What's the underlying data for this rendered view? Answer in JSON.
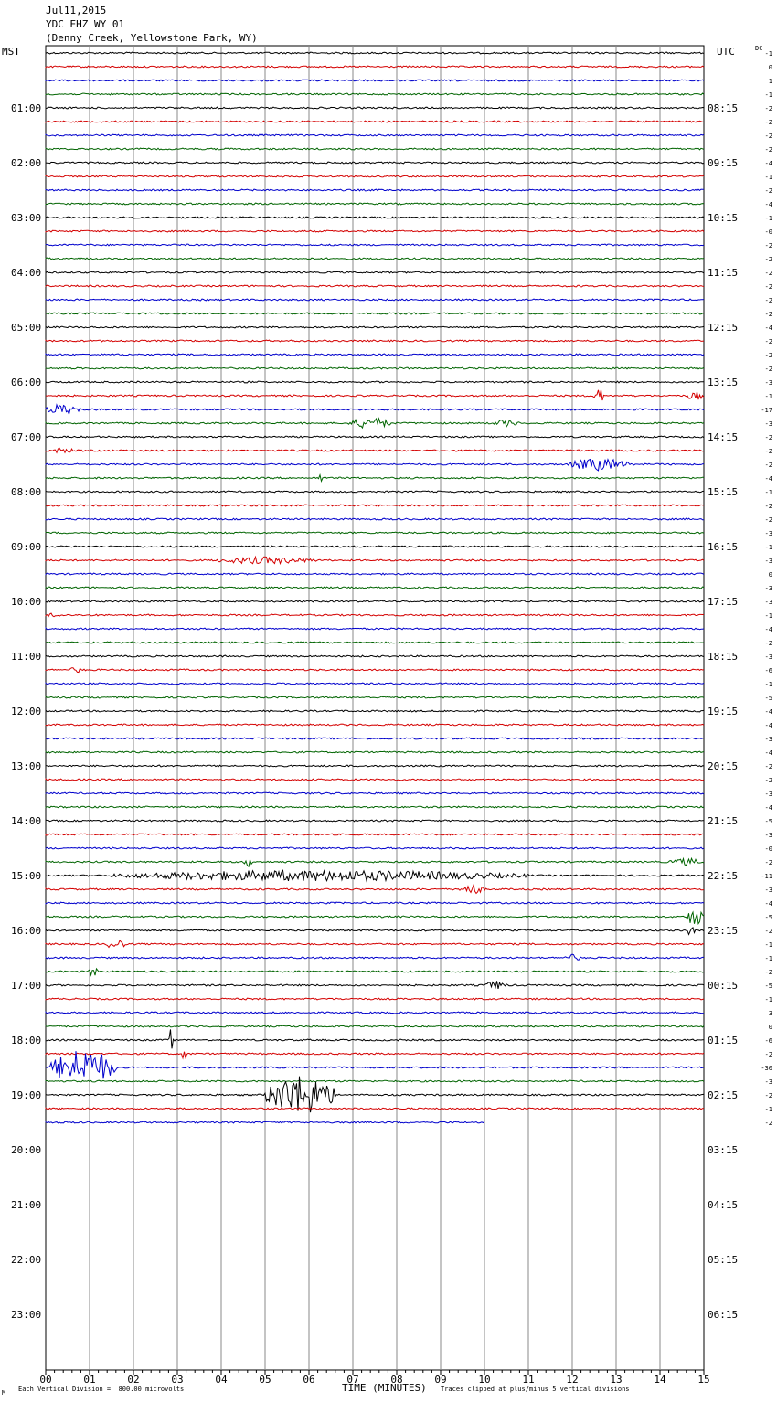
{
  "header": {
    "date": "Jul11,2015",
    "station": "YDC EHZ WY 01",
    "location": "(Denny Creek, Yellowstone Park, WY)",
    "left_zone": "MST",
    "right_zone": "UTC",
    "dc_label": "DC"
  },
  "footer": {
    "scale_note": "Each Vertical Division =  800.00 microvolts",
    "xlabel": "TIME (MINUTES)",
    "clip_note": "Traces clipped at plus/minus 5 vertical divisions",
    "corner_mark": "M"
  },
  "chart_data": {
    "type": "line",
    "title": "YDC EHZ WY 01",
    "xlabel": "TIME (MINUTES)",
    "xlim": [
      0,
      15
    ],
    "x_ticks": [
      "00",
      "01",
      "02",
      "03",
      "04",
      "05",
      "06",
      "07",
      "08",
      "09",
      "10",
      "11",
      "12",
      "13",
      "14",
      "15"
    ],
    "left_hour_labels": [
      "01:00",
      "02:00",
      "03:00",
      "04:00",
      "05:00",
      "06:00",
      "07:00",
      "08:00",
      "09:00",
      "10:00",
      "11:00",
      "12:00",
      "13:00",
      "14:00",
      "15:00",
      "16:00",
      "17:00",
      "18:00",
      "19:00",
      "20:00",
      "21:00",
      "22:00",
      "23:00"
    ],
    "right_hour_labels": [
      "08:15",
      "09:15",
      "10:15",
      "11:15",
      "12:15",
      "13:15",
      "14:15",
      "15:15",
      "16:15",
      "17:15",
      "18:15",
      "19:15",
      "20:15",
      "21:15",
      "22:15",
      "23:15",
      "00:15",
      "01:15",
      "02:15",
      "03:15",
      "04:15",
      "05:15",
      "06:15"
    ],
    "trace_colors": [
      "#000000",
      "#d40000",
      "#0000cc",
      "#006400"
    ],
    "total_traces": 79,
    "last_trace_end_minute": 10,
    "dc_offsets": [
      "-1",
      "0",
      "1",
      "-1",
      "-2",
      "-2",
      "-2",
      "-2",
      "-4",
      "-1",
      "-2",
      "-4",
      "-1",
      "-0",
      "-2",
      "-2",
      "-2",
      "-2",
      "-2",
      "-2",
      "-4",
      "-2",
      "-2",
      "-2",
      "-3",
      "-1",
      "-17",
      "-3",
      "-2",
      "-2",
      "-2",
      "-4",
      "-1",
      "-2",
      "-2",
      "-3",
      "-1",
      "-3",
      "0",
      "-3",
      "-3",
      "-1",
      "-4",
      "-2",
      "-3",
      "-6",
      "-1",
      "-5",
      "-4",
      "-4",
      "-3",
      "-4",
      "-2",
      "-2",
      "-3",
      "-4",
      "-5",
      "-3",
      "-0",
      "-2",
      "-11",
      "-3",
      "-4",
      "-5",
      "-2",
      "-1",
      "-1",
      "-2",
      "-5",
      "-1",
      "3",
      "0",
      "-6",
      "-2",
      "-30",
      "-3",
      "-2",
      "-1",
      "-2"
    ],
    "events": [
      {
        "trace": 26,
        "start_min": 0.0,
        "end_min": 0.8,
        "amp": 6
      },
      {
        "trace": 27,
        "start_min": 6.9,
        "end_min": 7.9,
        "amp": 6
      },
      {
        "trace": 27,
        "start_min": 10.2,
        "end_min": 10.8,
        "amp": 4
      },
      {
        "trace": 29,
        "start_min": 0.0,
        "end_min": 0.7,
        "amp": 3
      },
      {
        "trace": 30,
        "start_min": 11.9,
        "end_min": 13.3,
        "amp": 7
      },
      {
        "trace": 31,
        "start_min": 6.2,
        "end_min": 6.3,
        "amp": 8
      },
      {
        "trace": 37,
        "start_min": 3.8,
        "end_min": 6.2,
        "amp": 4
      },
      {
        "trace": 25,
        "start_min": 12.5,
        "end_min": 12.7,
        "amp": 12
      },
      {
        "trace": 25,
        "start_min": 14.6,
        "end_min": 15.0,
        "amp": 5
      },
      {
        "trace": 41,
        "start_min": 0.0,
        "end_min": 0.4,
        "amp": 3
      },
      {
        "trace": 45,
        "start_min": 0.5,
        "end_min": 0.9,
        "amp": 3
      },
      {
        "trace": 59,
        "start_min": 14.2,
        "end_min": 15.0,
        "amp": 4
      },
      {
        "trace": 59,
        "start_min": 4.5,
        "end_min": 4.7,
        "amp": 6
      },
      {
        "trace": 60,
        "start_min": 1.5,
        "end_min": 11.0,
        "amp": 6
      },
      {
        "trace": 61,
        "start_min": 9.4,
        "end_min": 10.0,
        "amp": 6
      },
      {
        "trace": 63,
        "start_min": 14.6,
        "end_min": 15.0,
        "amp": 10
      },
      {
        "trace": 64,
        "start_min": 14.6,
        "end_min": 14.8,
        "amp": 6
      },
      {
        "trace": 65,
        "start_min": 1.4,
        "end_min": 1.8,
        "amp": 7
      },
      {
        "trace": 66,
        "start_min": 11.8,
        "end_min": 12.2,
        "amp": 4
      },
      {
        "trace": 67,
        "start_min": 1.0,
        "end_min": 1.2,
        "amp": 7
      },
      {
        "trace": 68,
        "start_min": 10.0,
        "end_min": 10.5,
        "amp": 5
      },
      {
        "trace": 72,
        "start_min": 2.8,
        "end_min": 2.9,
        "amp": 14
      },
      {
        "trace": 73,
        "start_min": 3.1,
        "end_min": 3.2,
        "amp": 10
      },
      {
        "trace": 74,
        "start_min": 0.1,
        "end_min": 1.6,
        "amp": 20
      },
      {
        "trace": 76,
        "start_min": 5.0,
        "end_min": 6.6,
        "amp": 22
      }
    ]
  }
}
